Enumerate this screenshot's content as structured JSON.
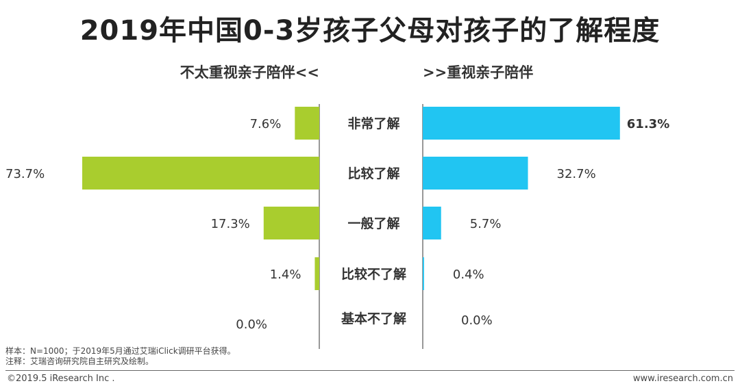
{
  "chart_data": {
    "type": "bar",
    "title": "2019年中国0-3岁孩子父母对孩子的了解程度",
    "categories": [
      "非常了解",
      "比较了解",
      "一般了解",
      "比较不了解",
      "基本不了解"
    ],
    "series": [
      {
        "name": "不太重视亲子陪伴<<",
        "values": [
          7.6,
          73.7,
          17.3,
          1.4,
          0.0
        ],
        "labels": [
          "7.6%",
          "73.7%",
          "17.3%",
          "1.4%",
          "0.0%"
        ],
        "color": "#a9cd2e",
        "direction": "left"
      },
      {
        "name": ">>重视亲子陪伴",
        "values": [
          61.3,
          32.7,
          5.7,
          0.4,
          0.0
        ],
        "labels": [
          "61.3%",
          "32.7%",
          "5.7%",
          "0.4%",
          "0.0%"
        ],
        "color": "#21c5f2",
        "direction": "right"
      }
    ],
    "value_unit": "%",
    "xlim": [
      0,
      75
    ],
    "grid": false
  },
  "notes": {
    "sample": "样本：N=1000；于2019年5月通过艾瑞iClick调研平台获得。",
    "source": "注释：艾瑞咨询研究院自主研究及绘制。"
  },
  "footer": {
    "copyright": "©2019.5 iResearch Inc .",
    "website": "www.iresearch.com.cn"
  }
}
